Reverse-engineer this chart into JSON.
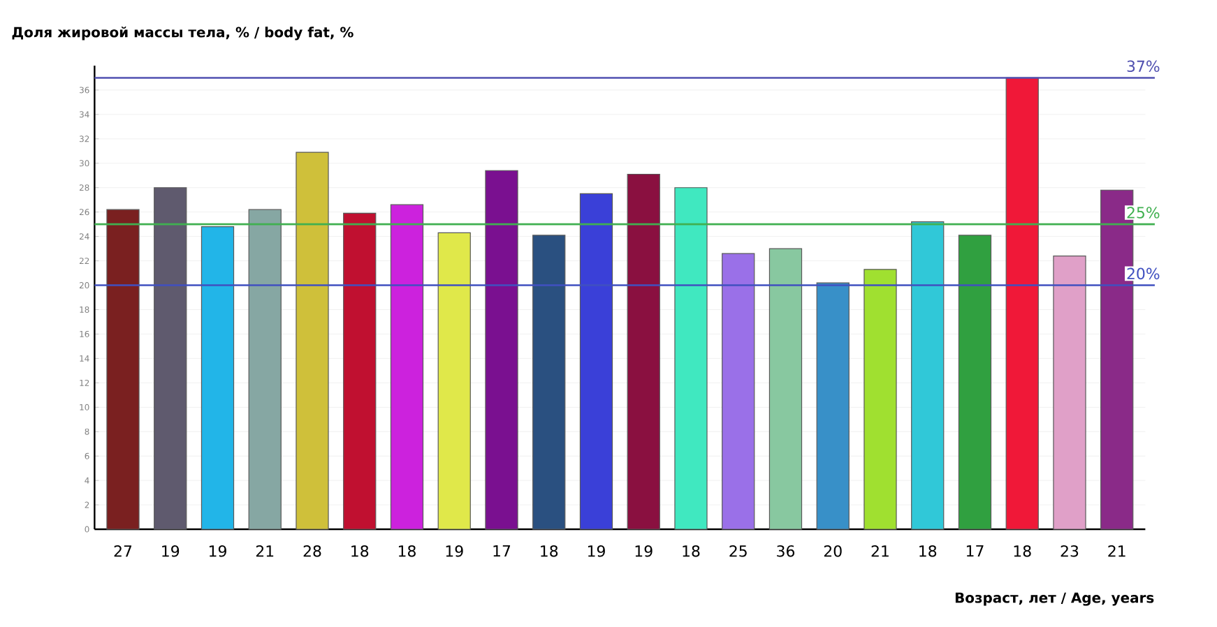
{
  "chart_data": {
    "type": "bar",
    "ylabel": "Доля жировой массы тела, % / body fat, %",
    "xlabel": "Возраст, лет / Age, years",
    "categories": [
      "27",
      "19",
      "19",
      "21",
      "28",
      "18",
      "18",
      "19",
      "17",
      "18",
      "19",
      "19",
      "18",
      "25",
      "36",
      "20",
      "21",
      "18",
      "17",
      "18",
      "23",
      "21"
    ],
    "values": [
      26.2,
      28,
      24.8,
      26.2,
      30.9,
      25.9,
      26.6,
      24.3,
      29.4,
      24.1,
      27.5,
      29.1,
      28,
      22.6,
      23,
      20.2,
      21.3,
      25.2,
      24.1,
      37,
      22.4,
      27.8
    ],
    "colors": [
      "#7a2020",
      "#5f5a6e",
      "#22b5e8",
      "#86a7a3",
      "#cfc03a",
      "#c01030",
      "#cc22dd",
      "#e0e84a",
      "#7a1090",
      "#2a5080",
      "#3a40d8",
      "#8a1040",
      "#40e8c0",
      "#9a70e8",
      "#88c8a0",
      "#3890c8",
      "#a0e030",
      "#30c8d8",
      "#30a040",
      "#f01838",
      "#e0a0c8",
      "#8a2a88"
    ],
    "ylim": [
      0,
      38
    ],
    "yticks": [
      0,
      2,
      4,
      6,
      8,
      10,
      12,
      14,
      16,
      18,
      20,
      22,
      24,
      26,
      28,
      30,
      32,
      34,
      36
    ],
    "grid": "y",
    "ref_lines": [
      {
        "axis": "y",
        "value": 37,
        "label": "37%",
        "color": "#5050b0"
      },
      {
        "axis": "y",
        "value": 25,
        "label": "25%",
        "color": "#40b050"
      },
      {
        "axis": "y",
        "value": 20,
        "label": "20%",
        "color": "#4050c0"
      }
    ]
  }
}
